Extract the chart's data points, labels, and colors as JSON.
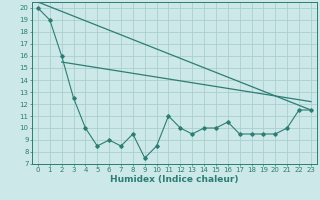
{
  "line1_x": [
    0,
    1,
    2,
    3,
    4,
    5,
    6,
    7,
    8,
    9,
    10,
    11,
    12,
    13,
    14,
    15,
    16,
    17,
    18,
    19,
    20,
    21,
    22,
    23
  ],
  "line1_y": [
    20,
    19,
    16,
    12.5,
    10,
    8.5,
    9,
    8.5,
    9.5,
    7.5,
    8.5,
    11,
    10,
    9.5,
    10,
    10,
    10.5,
    9.5,
    9.5,
    9.5,
    9.5,
    10,
    11.5,
    11.5
  ],
  "line2_x": [
    0,
    23
  ],
  "line2_y": [
    20.5,
    11.5
  ],
  "line3_x": [
    2,
    23
  ],
  "line3_y": [
    15.5,
    12.2
  ],
  "line_color": "#2d7d74",
  "bg_color": "#cde8e8",
  "grid_color": "#aacfcf",
  "xlabel": "Humidex (Indice chaleur)",
  "ylim": [
    7,
    20.5
  ],
  "xlim": [
    -0.5,
    23.5
  ],
  "yticks": [
    7,
    8,
    9,
    10,
    11,
    12,
    13,
    14,
    15,
    16,
    17,
    18,
    19,
    20
  ],
  "xticks": [
    0,
    1,
    2,
    3,
    4,
    5,
    6,
    7,
    8,
    9,
    10,
    11,
    12,
    13,
    14,
    15,
    16,
    17,
    18,
    19,
    20,
    21,
    22,
    23
  ],
  "tick_label_fontsize": 5.0,
  "xlabel_fontsize": 6.5
}
